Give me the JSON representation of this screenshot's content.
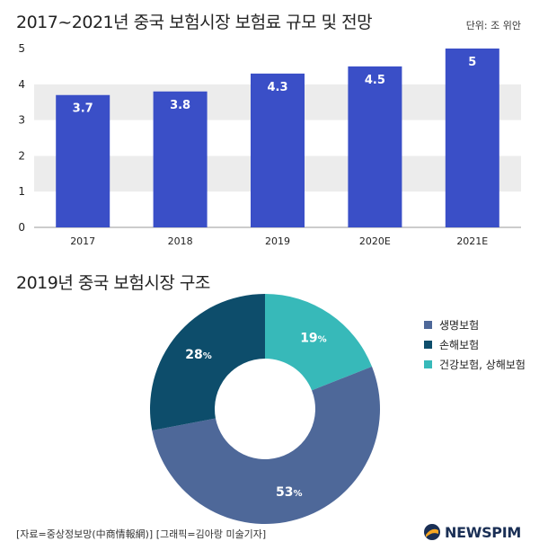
{
  "header": {
    "title1": "2017~2021년 중국 보험시장 보험료 규모 및 전망",
    "unit": "단위: 조 위안",
    "title2": "2019년 중국 보험시장 구조"
  },
  "chart_data": [
    {
      "type": "bar",
      "categories": [
        "2017",
        "2018",
        "2019",
        "2020E",
        "2021E"
      ],
      "values": [
        3.7,
        3.8,
        4.3,
        4.5,
        5
      ],
      "ylim": [
        0,
        5
      ],
      "yticks": [
        0,
        1,
        2,
        3,
        4,
        5
      ],
      "grid": "alternating bands",
      "bar_color": "#3a4fc7"
    },
    {
      "type": "pie",
      "style": "donut",
      "series": [
        {
          "name": "생명보험",
          "value": 53,
          "label": "53",
          "color": "#4e6899"
        },
        {
          "name": "손해보험",
          "value": 28,
          "label": "28",
          "color": "#0d4d6b"
        },
        {
          "name": "건강보험, 상해보험",
          "value": 19,
          "label": "19",
          "color": "#37b9b9"
        }
      ],
      "legend": "right"
    }
  ],
  "footer": {
    "source": "[자료=중상정보망(中商情報網)] [그래픽=김아랑 미술기자]",
    "logo": "NEWSPIM"
  }
}
